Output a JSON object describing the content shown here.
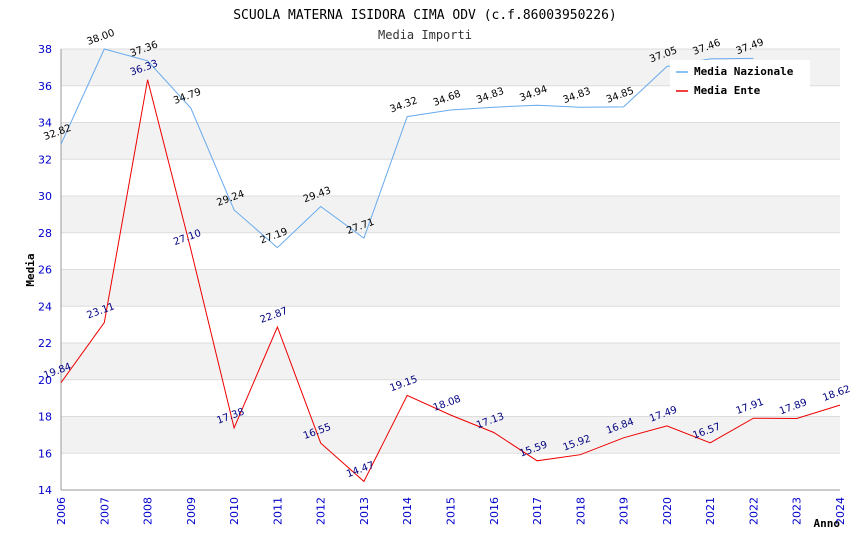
{
  "chart_data": {
    "type": "line",
    "title": "SCUOLA MATERNA ISIDORA CIMA ODV (c.f.86003950226)",
    "subtitle": "Media Importi",
    "xlabel": "Anno",
    "ylabel": "Media",
    "ylim": [
      14,
      38
    ],
    "yticks": [
      "14",
      "16",
      "18",
      "20",
      "22",
      "24",
      "26",
      "28",
      "30",
      "32",
      "34",
      "36",
      "38"
    ],
    "x": [
      "2006",
      "2007",
      "2008",
      "2009",
      "2010",
      "2011",
      "2012",
      "2013",
      "2014",
      "2015",
      "2016",
      "2017",
      "2018",
      "2019",
      "2020",
      "2021",
      "2022",
      "2023",
      "2024"
    ],
    "grid": true,
    "legend_position": "top-right",
    "series": [
      {
        "name": "Media Nazionale",
        "color": "#66aaee",
        "label_color": "#000000",
        "values": [
          32.82,
          38.0,
          37.36,
          34.79,
          29.24,
          27.19,
          29.43,
          27.71,
          34.32,
          34.68,
          34.83,
          34.94,
          34.83,
          34.85,
          37.05,
          37.46,
          37.49,
          null,
          null
        ],
        "labels": [
          "32.82",
          "38.00",
          "37.36",
          "34.79",
          "29.24",
          "27.19",
          "29.43",
          "27.71",
          "34.32",
          "34.68",
          "34.83",
          "34.94",
          "34.83",
          "34.85",
          "37.05",
          "37.46",
          "37.49",
          "",
          ""
        ]
      },
      {
        "name": "Media Ente",
        "color": "#ee0000",
        "label_color": "#000080",
        "values": [
          19.84,
          23.11,
          36.33,
          27.1,
          17.38,
          22.87,
          16.55,
          14.47,
          19.15,
          18.08,
          17.13,
          15.59,
          15.92,
          16.84,
          17.49,
          16.57,
          17.91,
          17.89,
          18.62
        ],
        "labels": [
          "19.84",
          "23.11",
          "36.33",
          "27.10",
          "17.38",
          "22.87",
          "16.55",
          "14.47",
          "19.15",
          "18.08",
          "17.13",
          "15.59",
          "15.92",
          "16.84",
          "17.49",
          "16.57",
          "17.91",
          "17.89",
          "18.62"
        ]
      }
    ]
  }
}
